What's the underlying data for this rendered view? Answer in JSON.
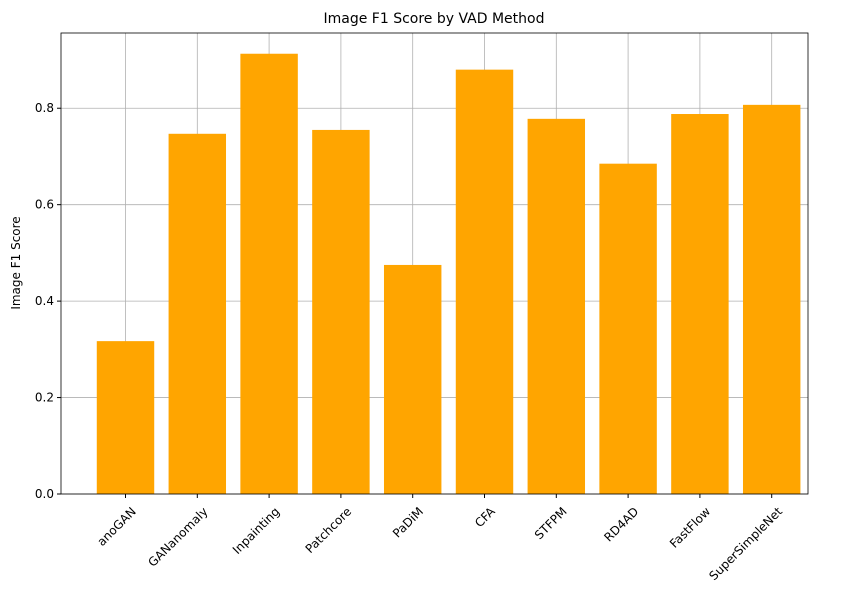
{
  "chart_data": {
    "type": "bar",
    "title": "Image F1 Score by VAD Method",
    "y_label": "Image F1 Score",
    "categories": [
      "anoGAN",
      "GANanomaly",
      "Inpainting",
      "Patchcore",
      "PaDiM",
      "CFA",
      "STFPM",
      "RD4AD",
      "FastFlow",
      "SuperSimpleNet"
    ],
    "values": [
      0.317,
      0.747,
      0.913,
      0.755,
      0.475,
      0.88,
      0.778,
      0.685,
      0.788,
      0.807
    ],
    "color": "#ffa500",
    "ylim": [
      0,
      0.956
    ],
    "yticks": [
      {
        "value": 0,
        "label": "0.0"
      },
      0.2,
      0.4,
      0.6,
      0.8
    ],
    "grid": true
  }
}
